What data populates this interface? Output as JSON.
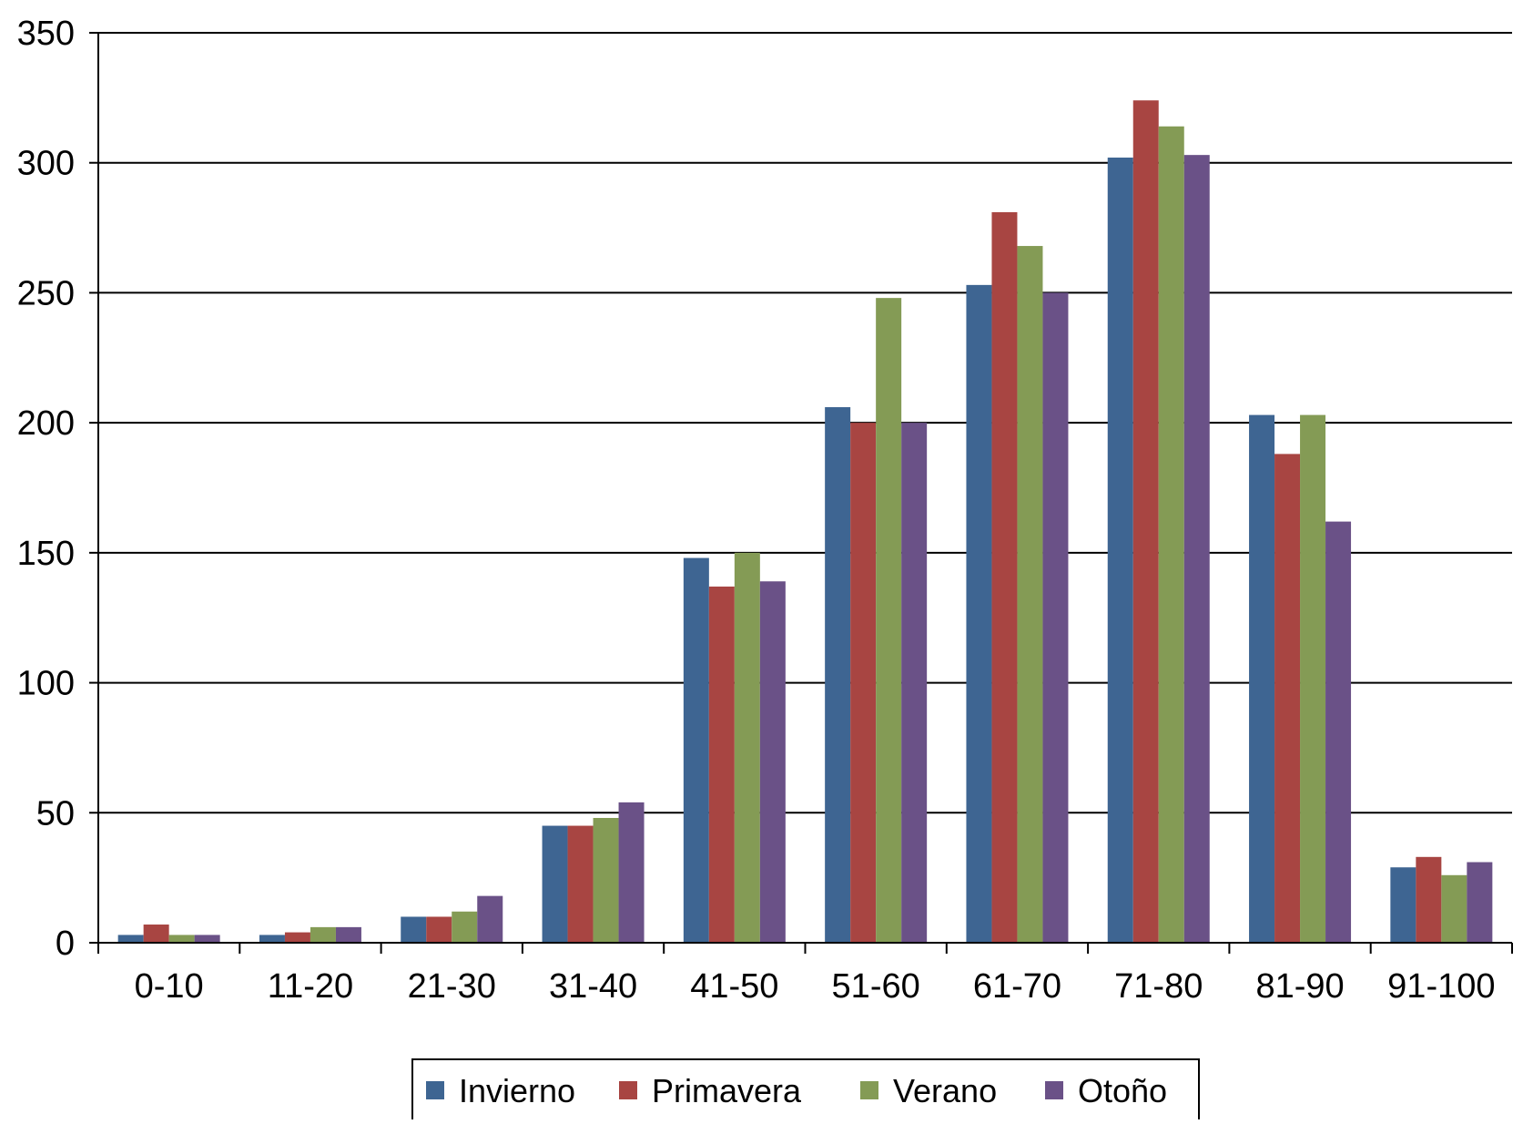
{
  "chart_data": {
    "type": "bar",
    "categories": [
      "0-10",
      "11-20",
      "21-30",
      "31-40",
      "41-50",
      "51-60",
      "61-70",
      "71-80",
      "81-90",
      "91-100"
    ],
    "series": [
      {
        "name": "Invierno",
        "color": "#3E6592",
        "values": [
          3,
          3,
          10,
          45,
          148,
          206,
          253,
          302,
          203,
          29
        ]
      },
      {
        "name": "Primavera",
        "color": "#A84542",
        "values": [
          7,
          4,
          10,
          45,
          137,
          200,
          281,
          324,
          188,
          33
        ]
      },
      {
        "name": "Verano",
        "color": "#849B55",
        "values": [
          3,
          6,
          12,
          48,
          150,
          248,
          268,
          314,
          203,
          26
        ]
      },
      {
        "name": "Otoño",
        "color": "#6A5187",
        "values": [
          3,
          6,
          18,
          54,
          139,
          200,
          250,
          303,
          162,
          31
        ]
      }
    ],
    "ylim": [
      0,
      350
    ],
    "yticks": [
      0,
      50,
      100,
      150,
      200,
      250,
      300,
      350
    ],
    "grid": true,
    "legend_position": "bottom"
  }
}
